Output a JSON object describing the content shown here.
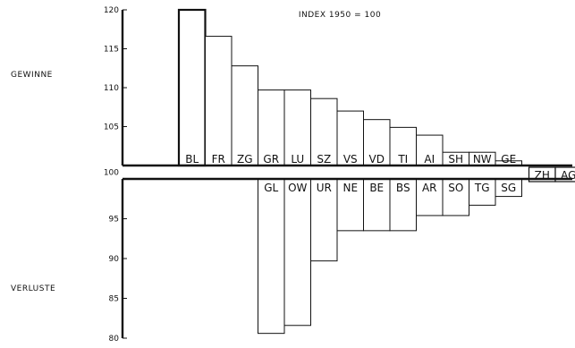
{
  "chart_data": {
    "type": "bar",
    "title": "INDEX 1950 = 100",
    "baseline": 100,
    "ylim": [
      80,
      120
    ],
    "yticks": [
      80,
      85,
      90,
      95,
      100,
      105,
      110,
      115,
      120
    ],
    "side_labels": {
      "gains": "GEWINNE",
      "losses": "VERLUSTE"
    },
    "series": [
      {
        "name": "",
        "categories": [
          "BL",
          "FR",
          "ZG",
          "GR",
          "LU",
          "SZ",
          "VS",
          "VD",
          "TI",
          "AI",
          "SH",
          "NW",
          "GE",
          "ZH",
          "AG"
        ],
        "values": [
          120.0,
          116.6,
          112.8,
          109.7,
          109.7,
          108.6,
          107.0,
          105.9,
          104.9,
          103.9,
          101.7,
          101.7,
          100.6,
          100.3,
          100.3
        ]
      },
      {
        "name": "",
        "categories": [
          "GL",
          "OW",
          "UR",
          "NE",
          "BE",
          "BS",
          "AR",
          "SO",
          "TG",
          "SG"
        ],
        "values": [
          80.6,
          81.6,
          89.7,
          93.5,
          93.5,
          93.5,
          95.4,
          95.4,
          96.7,
          97.8
        ]
      }
    ]
  }
}
